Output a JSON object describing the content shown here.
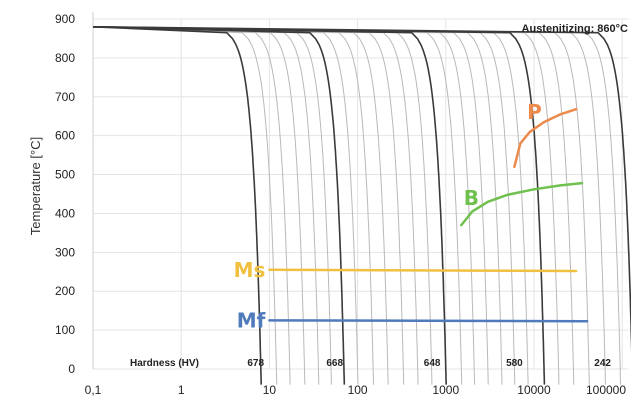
{
  "chart_data": {
    "type": "line",
    "title": "",
    "annotation": "Austenitizing: 860°C",
    "xlabel": "",
    "ylabel": "Temperature [°C]",
    "x_scale": "log",
    "x_ticks": [
      {
        "value": 0.1,
        "label": "0,1"
      },
      {
        "value": 1,
        "label": "1"
      },
      {
        "value": 10,
        "label": "10"
      },
      {
        "value": 100,
        "label": "100"
      },
      {
        "value": 1000,
        "label": "1000"
      },
      {
        "value": 10000,
        "label": "10000"
      },
      {
        "value": 100000,
        "label": "100000"
      }
    ],
    "y_ticks": [
      0,
      100,
      200,
      300,
      400,
      500,
      600,
      700,
      800,
      900
    ],
    "ylim": [
      0,
      900
    ],
    "grid": true,
    "hardness_title": "Hardness (HV)",
    "hardness_labels": [
      {
        "label": "678",
        "x": 7
      },
      {
        "label": "668",
        "x": 55
      },
      {
        "label": "648",
        "x": 700
      },
      {
        "label": "580",
        "x": 6000
      },
      {
        "label": "242",
        "x": 60000
      }
    ],
    "cooling_curves_major": [
      {
        "x_at_0": 8
      },
      {
        "x_at_0": 70
      },
      {
        "x_at_0": 1000
      },
      {
        "x_at_0": 13000
      },
      {
        "x_at_0": 130000
      }
    ],
    "cooling_curves_minor": [
      {
        "x_at_0": 12
      },
      {
        "x_at_0": 17
      },
      {
        "x_at_0": 25
      },
      {
        "x_at_0": 36
      },
      {
        "x_at_0": 50
      },
      {
        "x_at_0": 100
      },
      {
        "x_at_0": 150
      },
      {
        "x_at_0": 220
      },
      {
        "x_at_0": 330
      },
      {
        "x_at_0": 480
      },
      {
        "x_at_0": 690
      },
      {
        "x_at_0": 1500
      },
      {
        "x_at_0": 2100
      },
      {
        "x_at_0": 3000
      },
      {
        "x_at_0": 4300
      },
      {
        "x_at_0": 6000
      },
      {
        "x_at_0": 8500
      },
      {
        "x_at_0": 19000
      },
      {
        "x_at_0": 28000
      },
      {
        "x_at_0": 42000
      },
      {
        "x_at_0": 64000
      },
      {
        "x_at_0": 95000
      }
    ],
    "series": [
      {
        "name": "Ms",
        "color": "#f0c040",
        "points": [
          [
            10,
            255
          ],
          [
            30000,
            252
          ]
        ]
      },
      {
        "name": "Mf",
        "color": "#4f7bbd",
        "points": [
          [
            10,
            125
          ],
          [
            40000,
            123
          ]
        ]
      },
      {
        "name": "B",
        "color": "#6fc04e",
        "points": [
          [
            1500,
            370
          ],
          [
            2000,
            405
          ],
          [
            3000,
            430
          ],
          [
            5000,
            448
          ],
          [
            10000,
            462
          ],
          [
            20000,
            472
          ],
          [
            35000,
            478
          ]
        ]
      },
      {
        "name": "P",
        "color": "#ec8a4c",
        "points": [
          [
            6000,
            520
          ],
          [
            7000,
            580
          ],
          [
            9000,
            610
          ],
          [
            13000,
            635
          ],
          [
            20000,
            655
          ],
          [
            30000,
            668
          ]
        ]
      }
    ]
  }
}
